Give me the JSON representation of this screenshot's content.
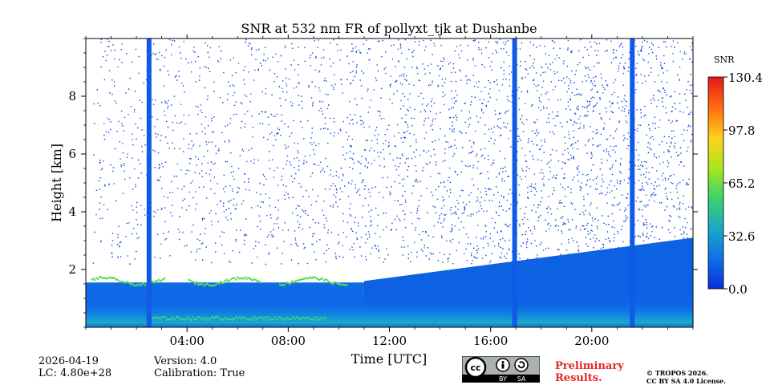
{
  "chart_data": {
    "type": "heatmap",
    "title": "SNR at 532 nm FR of pollyxt_tjk at Dushanbe",
    "xlabel": "Time [UTC]",
    "ylabel": "Height [km]",
    "xlim": [
      0,
      24
    ],
    "ylim": [
      0,
      10
    ],
    "x_ticks": [
      {
        "value": 4,
        "label": "04:00"
      },
      {
        "value": 8,
        "label": "08:00"
      },
      {
        "value": 12,
        "label": "12:00"
      },
      {
        "value": 16,
        "label": "16:00"
      },
      {
        "value": 20,
        "label": "20:00"
      }
    ],
    "y_ticks": [
      {
        "value": 2,
        "label": "2"
      },
      {
        "value": 4,
        "label": "4"
      },
      {
        "value": 6,
        "label": "6"
      },
      {
        "value": 8,
        "label": "8"
      }
    ],
    "colorbar": {
      "label": "SNR",
      "min": 0.0,
      "max": 130.4,
      "ticks": [
        {
          "value": 0.0,
          "label": "0.0"
        },
        {
          "value": 32.6,
          "label": "32.6"
        },
        {
          "value": 65.2,
          "label": "65.2"
        },
        {
          "value": 97.8,
          "label": "97.8"
        },
        {
          "value": 130.4,
          "label": "130.4"
        }
      ],
      "colors": [
        "#0a2ed8",
        "#0f6ee8",
        "#18a8c8",
        "#3cd26a",
        "#a8e61e",
        "#ffd21a",
        "#ff6a10",
        "#e8141c"
      ]
    },
    "signal_features": {
      "layer_top_km_early": 1.6,
      "near_surface_snr_peak": 40,
      "vertical_streak_hours": [
        2.5,
        16.95,
        21.6
      ]
    }
  },
  "footer": {
    "date": "2026-04-19",
    "lc": "LC: 4.80e+28",
    "version": "Version: 4.0",
    "calibration": "Calibration: True",
    "preliminary_line1": "Preliminary",
    "preliminary_line2": "Results.",
    "copyright_line1": "© TROPOS 2026.",
    "copyright_line2": "CC BY SA 4.0 License.",
    "license_badge_left": "BY",
    "license_badge_right": "SA",
    "license_cc": "cc"
  }
}
